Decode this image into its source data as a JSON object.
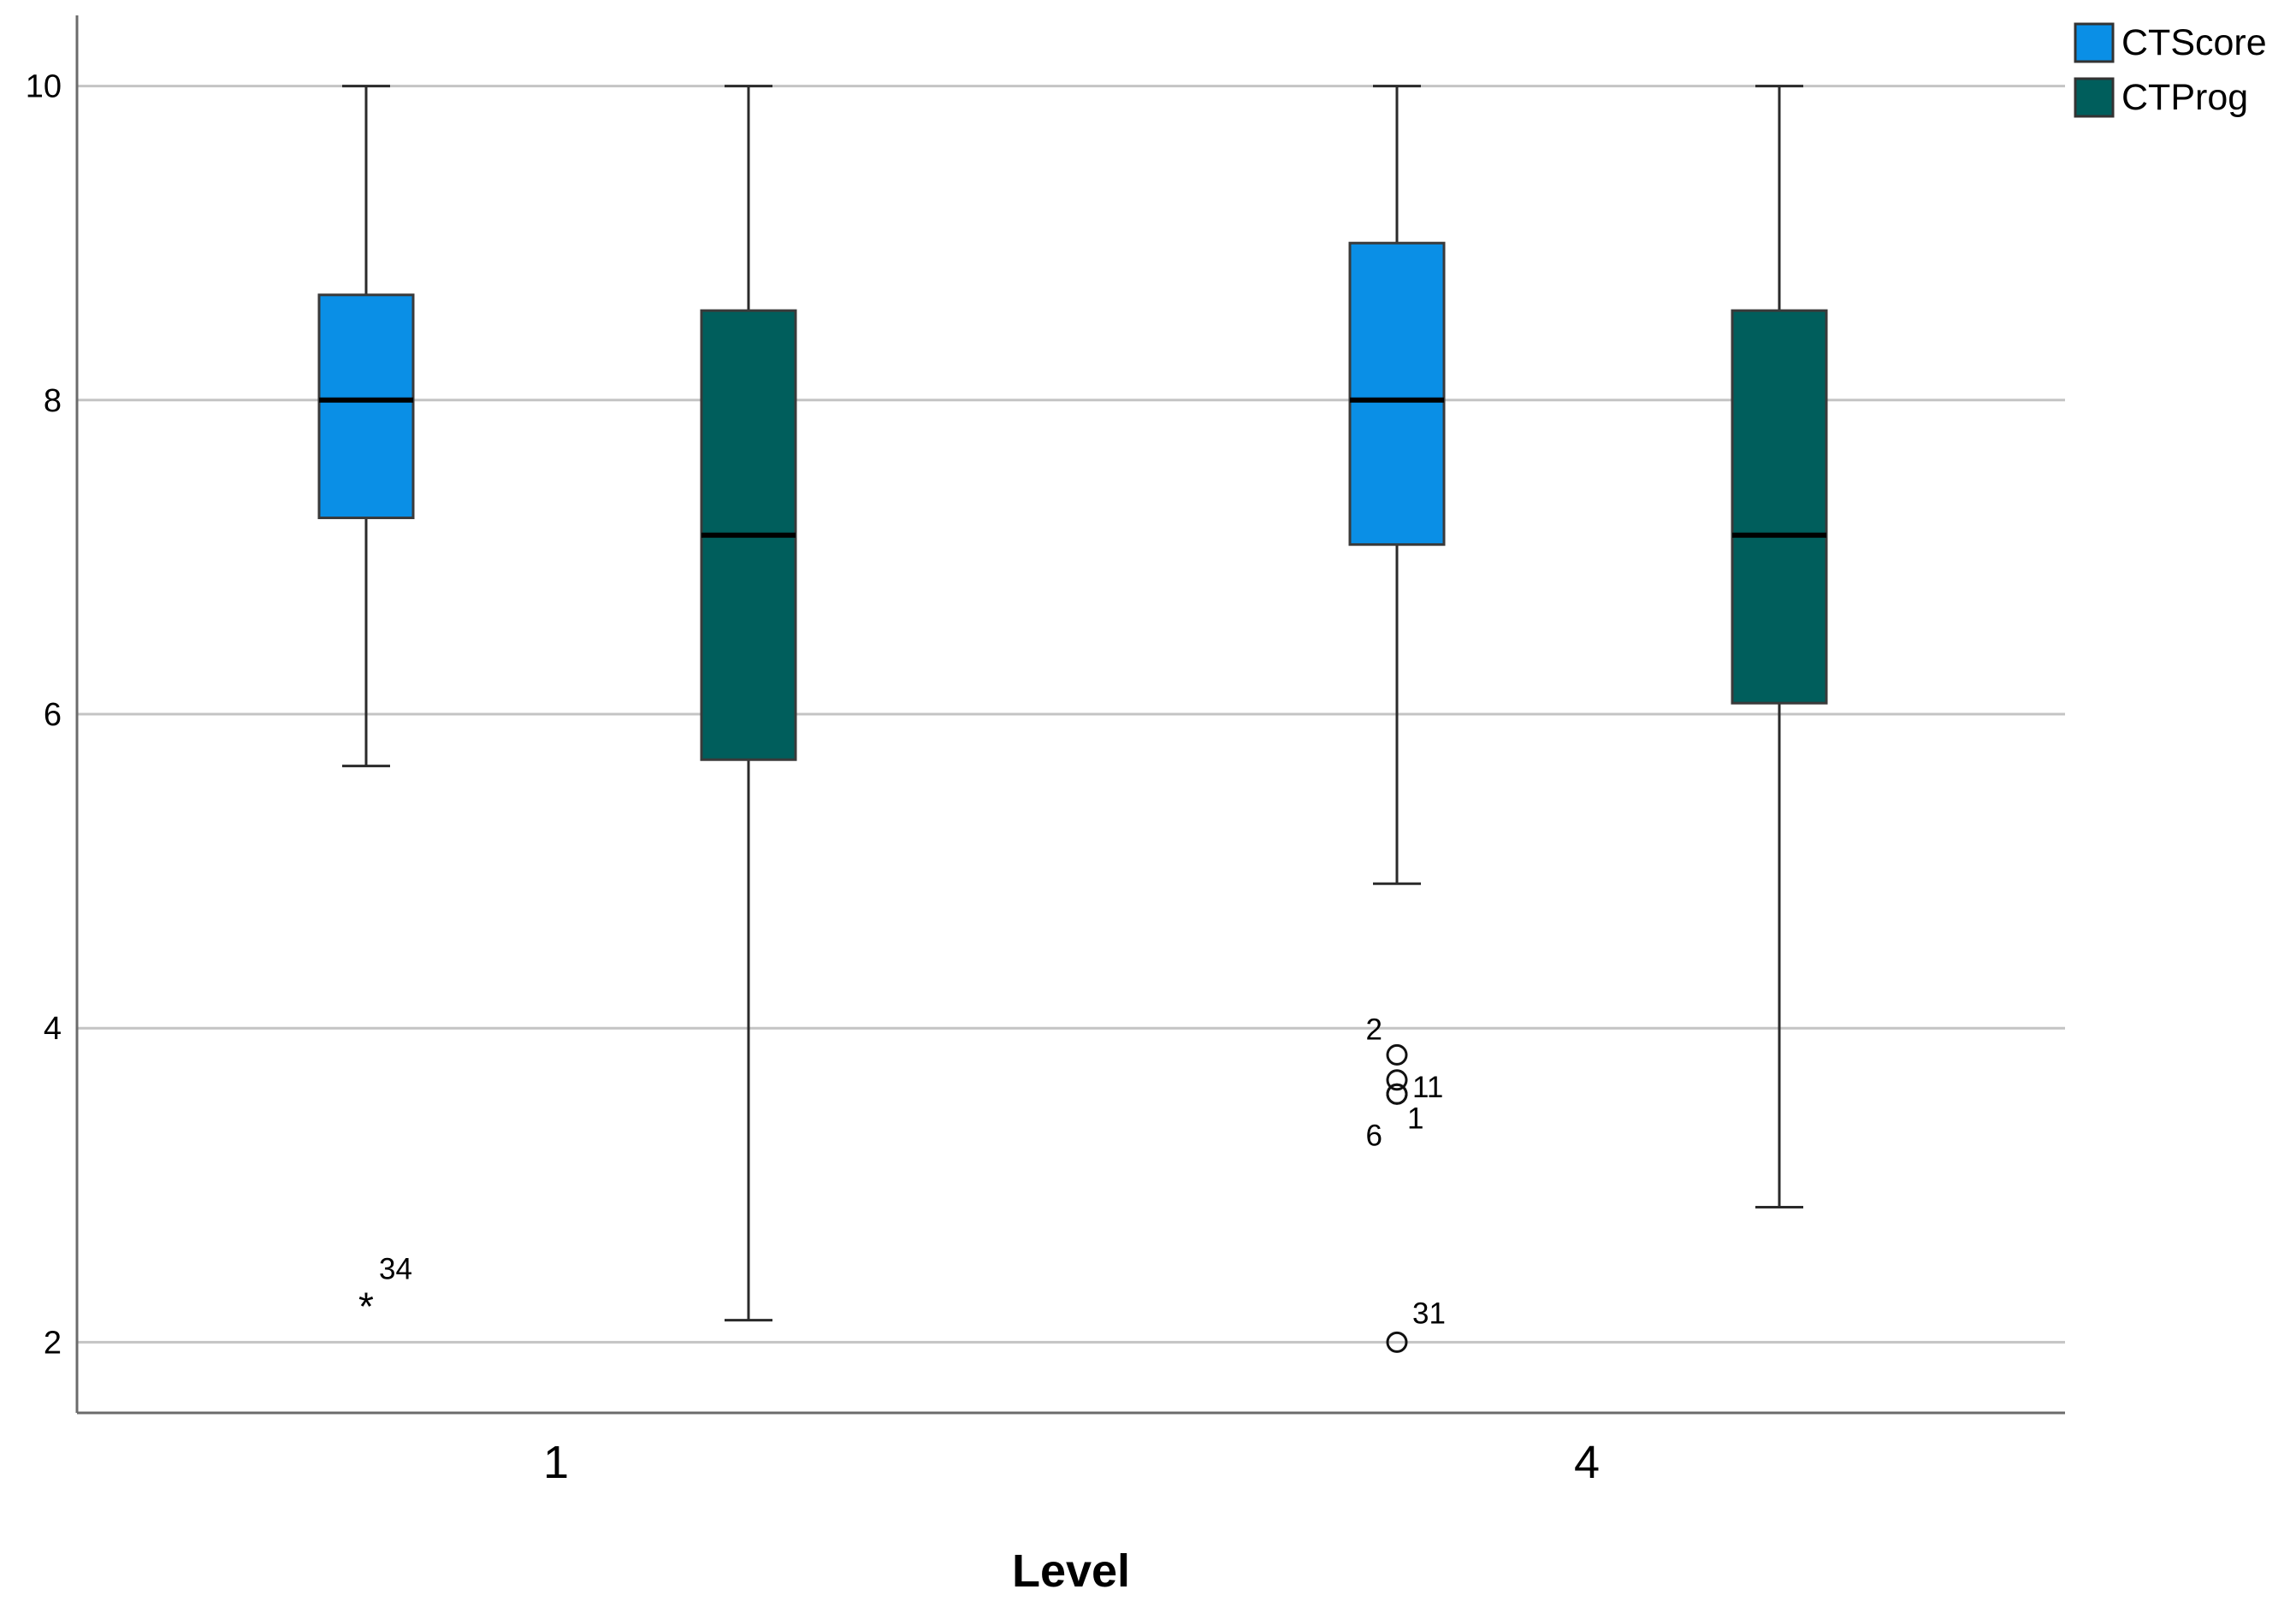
{
  "chart_data": {
    "type": "boxplot",
    "xlabel": "Level",
    "ylabel": "",
    "ylim": [
      1.55,
      10.45
    ],
    "yticks": [
      2,
      4,
      6,
      8,
      10
    ],
    "categories": [
      "1",
      "4"
    ],
    "grid": "horizontal",
    "legend_position": "top-right",
    "series": [
      {
        "name": "CTScore",
        "color": "#0A8FE6",
        "boxes": [
          {
            "category": "1",
            "whisker_low": 5.67,
            "q1": 7.25,
            "median": 8.0,
            "q3": 8.67,
            "whisker_high": 10.0,
            "outliers": [
              {
                "value": 2.25,
                "label": "34",
                "marker": "star"
              }
            ]
          },
          {
            "category": "4",
            "whisker_low": 4.92,
            "q1": 7.08,
            "median": 8.0,
            "q3": 9.0,
            "whisker_high": 10.0,
            "outliers": [
              {
                "value": 3.83,
                "label": "2",
                "marker": "circle"
              },
              {
                "value": 3.67,
                "label": "11",
                "marker": "circle"
              },
              {
                "value": 3.58,
                "label": "1",
                "marker": "circle"
              },
              {
                "value": 3.58,
                "label": "6",
                "marker": "circle"
              },
              {
                "value": 2.0,
                "label": "31",
                "marker": "circle"
              }
            ]
          }
        ]
      },
      {
        "name": "CTProg",
        "color": "#005E5C",
        "boxes": [
          {
            "category": "1",
            "whisker_low": 2.14,
            "q1": 5.71,
            "median": 7.14,
            "q3": 8.57,
            "whisker_high": 10.0,
            "outliers": []
          },
          {
            "category": "4",
            "whisker_low": 2.86,
            "q1": 6.07,
            "median": 7.14,
            "q3": 8.57,
            "whisker_high": 10.0,
            "outliers": []
          }
        ]
      }
    ]
  }
}
